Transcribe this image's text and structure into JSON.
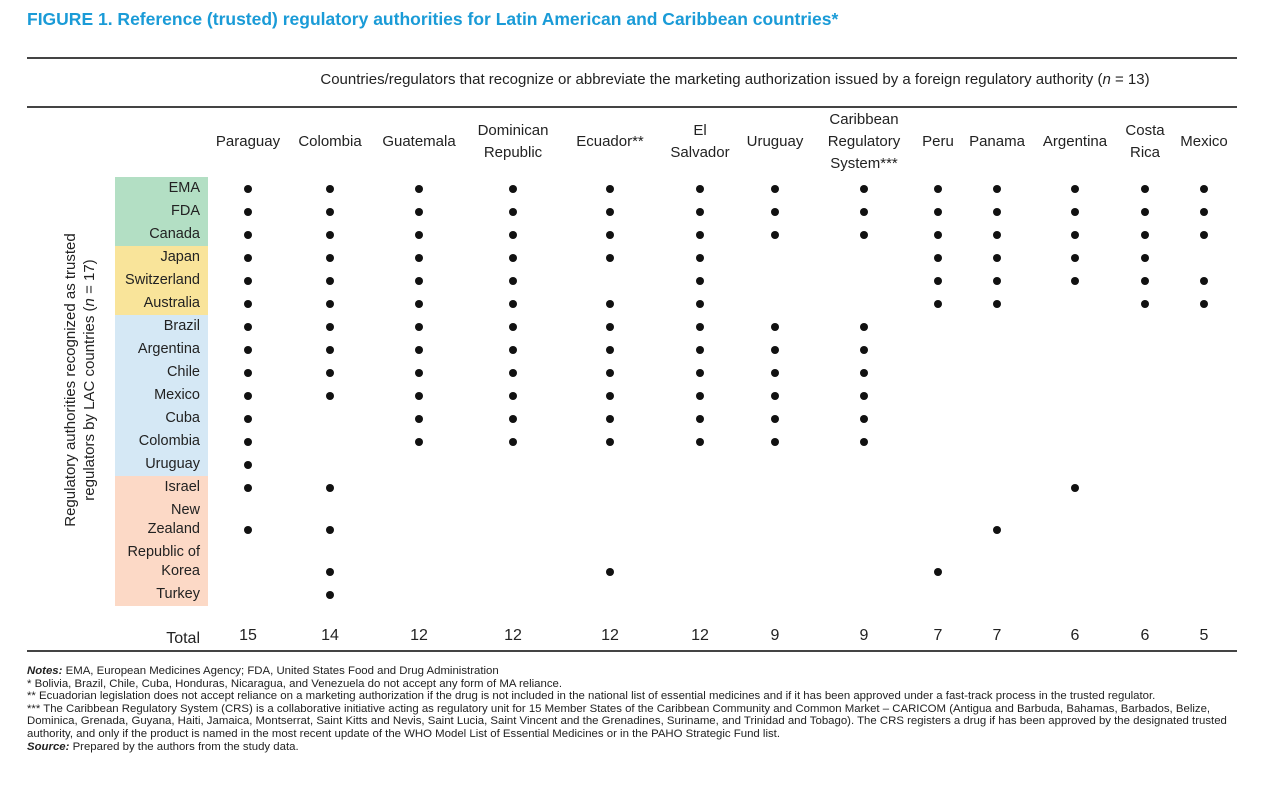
{
  "title": "FIGURE 1. Reference (trusted) regulatory authorities for Latin American and Caribbean countries*",
  "table": {
    "column_header": [
      "Countries/regulators that recognize or abbreviate the marketing authorization issued by a foreign regulatory authority (",
      "n",
      " = 13)"
    ],
    "row_header": [
      "Regulatory authorities recognized as trusted regulators by LAC countries (",
      "n",
      " = 17)"
    ],
    "columns": [
      "Paraguay",
      "Colombia",
      "Guatemala",
      "Dominican Republic",
      "Ecuador**",
      "El Salvador",
      "Uruguay",
      "Caribbean Regulatory System***",
      "Peru",
      "Panama",
      "Argentina",
      "Costa Rica",
      "Mexico"
    ],
    "rows": [
      "EMA",
      "FDA",
      "Canada",
      "Japan",
      "Switzerland",
      "Australia",
      "Brazil",
      "Argentina",
      "Chile",
      "Mexico",
      "Cuba",
      "Colombia",
      "Uruguay",
      "Israel",
      "New Zealand",
      "Republic of Korea",
      "Turkey"
    ],
    "cells": [
      [
        true,
        true,
        true,
        true,
        true,
        true,
        true,
        true,
        true,
        true,
        true,
        true,
        true
      ],
      [
        true,
        true,
        true,
        true,
        true,
        true,
        true,
        true,
        true,
        true,
        true,
        true,
        true
      ],
      [
        true,
        true,
        true,
        true,
        true,
        true,
        true,
        true,
        true,
        true,
        true,
        true,
        true
      ],
      [
        true,
        true,
        true,
        true,
        true,
        true,
        false,
        false,
        true,
        true,
        true,
        true,
        false
      ],
      [
        true,
        true,
        true,
        true,
        false,
        true,
        false,
        false,
        true,
        true,
        true,
        true,
        true
      ],
      [
        true,
        true,
        true,
        true,
        true,
        true,
        false,
        false,
        true,
        true,
        false,
        true,
        true
      ],
      [
        true,
        true,
        true,
        true,
        true,
        true,
        true,
        true,
        false,
        false,
        false,
        false,
        false
      ],
      [
        true,
        true,
        true,
        true,
        true,
        true,
        true,
        true,
        false,
        false,
        false,
        false,
        false
      ],
      [
        true,
        true,
        true,
        true,
        true,
        true,
        true,
        true,
        false,
        false,
        false,
        false,
        false
      ],
      [
        true,
        true,
        true,
        true,
        true,
        true,
        true,
        true,
        false,
        false,
        false,
        false,
        false
      ],
      [
        true,
        false,
        true,
        true,
        true,
        true,
        true,
        true,
        false,
        false,
        false,
        false,
        false
      ],
      [
        true,
        false,
        true,
        true,
        true,
        true,
        true,
        true,
        false,
        false,
        false,
        false,
        false
      ],
      [
        true,
        false,
        false,
        false,
        false,
        false,
        false,
        false,
        false,
        false,
        false,
        false,
        false
      ],
      [
        true,
        true,
        false,
        false,
        false,
        false,
        false,
        false,
        false,
        false,
        true,
        false,
        false
      ],
      [
        true,
        true,
        false,
        false,
        false,
        false,
        false,
        false,
        false,
        true,
        false,
        false,
        false
      ],
      [
        false,
        true,
        false,
        false,
        true,
        false,
        false,
        false,
        true,
        false,
        false,
        false,
        false
      ],
      [
        false,
        true,
        false,
        false,
        false,
        false,
        false,
        false,
        false,
        false,
        false,
        false,
        false
      ]
    ],
    "total_label": "Total",
    "totals": [
      15,
      14,
      12,
      12,
      12,
      12,
      9,
      9,
      7,
      7,
      6,
      6,
      5
    ]
  },
  "notes": {
    "label": "Notes:",
    "text": " EMA, European Medicines Agency; FDA, United States Food and Drug Administration",
    "footnotes": [
      "* Bolivia, Brazil, Chile, Cuba, Honduras, Nicaragua, and Venezuela do not accept any form of MA reliance.",
      "** Ecuadorian legislation does not accept reliance on a marketing authorization if the drug is not included in the national list of essential medicines and if it has been approved under a fast-track process in the trusted regulator.",
      "*** The Caribbean Regulatory System (CRS) is a collaborative initiative acting as regulatory unit for 15 Member States of the Caribbean Community and Common Market – CARICOM (Antigua and Barbuda, Bahamas, Barbados, Belize, Dominica, Grenada, Guyana, Haiti, Jamaica, Montserrat, Saint Kitts and Nevis, Saint Lucia, Saint Vincent and the Grenadines, Suriname, and Trinidad and Tobago). The CRS registers a drug if has been approved by the designated trusted authority, and only if the product is named in the most recent update of the WHO Model List of Essential Medicines or in the PAHO Strategic Fund list."
    ],
    "source_label": "Source:",
    "source_text": " Prepared by the authors from the study data."
  }
}
